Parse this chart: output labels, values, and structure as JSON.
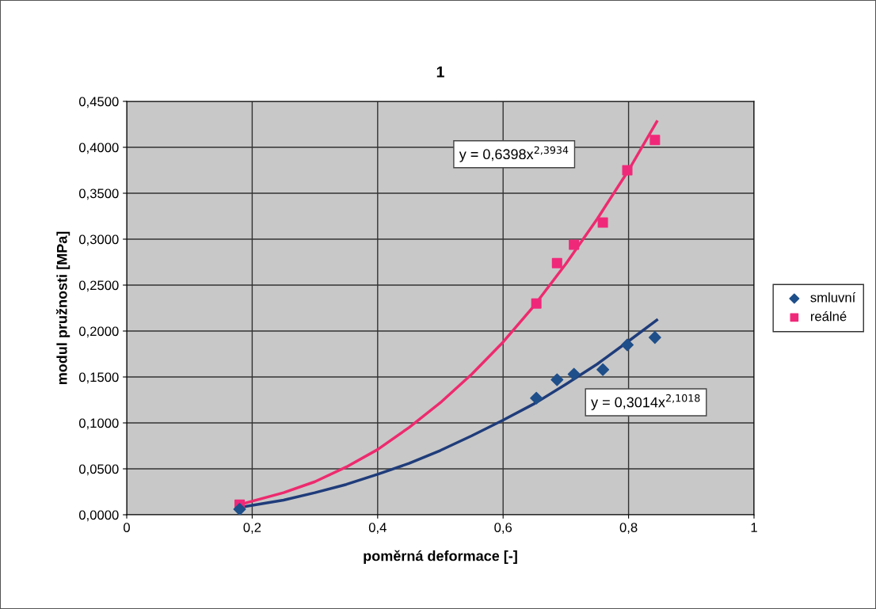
{
  "chart_data": {
    "type": "scatter",
    "title": "1",
    "xlabel": "poměrná deformace [-]",
    "ylabel": "modul pružnosti [MPa]",
    "xlim": [
      0,
      1
    ],
    "ylim": [
      0,
      0.45
    ],
    "xticks": [
      0,
      {
        "value": 0.2,
        "label": "0,2"
      },
      {
        "value": 0.4,
        "label": "0,4"
      },
      {
        "value": 0.6,
        "label": "0,6"
      },
      {
        "value": 0.8,
        "label": "0,8"
      },
      1
    ],
    "yticks": [
      {
        "value": 0,
        "label": "0,0000"
      },
      {
        "value": 0.05,
        "label": "0,0500"
      },
      {
        "value": 0.1,
        "label": "0,1000"
      },
      {
        "value": 0.15,
        "label": "0,1500"
      },
      {
        "value": 0.2,
        "label": "0,2000"
      },
      {
        "value": 0.25,
        "label": "0,2500"
      },
      {
        "value": 0.3,
        "label": "0,3000"
      },
      {
        "value": 0.35,
        "label": "0,3500"
      },
      {
        "value": 0.4,
        "label": "0,4000"
      },
      {
        "value": 0.45,
        "label": "0,4500"
      }
    ],
    "grid": true,
    "legend": "right",
    "series": [
      {
        "type": "line",
        "color": "#ee2a6e",
        "x": [
          0.18,
          0.25,
          0.3,
          0.35,
          0.4,
          0.45,
          0.5,
          0.55,
          0.6,
          0.65,
          0.7,
          0.75,
          0.8,
          0.845
        ],
        "values": [
          0.011,
          0.024,
          0.036,
          0.052,
          0.071,
          0.095,
          0.122,
          0.153,
          0.188,
          0.228,
          0.273,
          0.322,
          0.375,
          0.428
        ]
      },
      {
        "type": "line",
        "color": "#1f3c7a",
        "x": [
          0.18,
          0.25,
          0.3,
          0.35,
          0.4,
          0.45,
          0.5,
          0.55,
          0.6,
          0.65,
          0.7,
          0.75,
          0.8,
          0.845
        ],
        "values": [
          0.008,
          0.016,
          0.024,
          0.033,
          0.044,
          0.056,
          0.07,
          0.086,
          0.103,
          0.121,
          0.142,
          0.164,
          0.189,
          0.212
        ]
      },
      {
        "name": "smluvní",
        "marker": "diamond",
        "color": "#1f4f8a",
        "x": [
          0.18,
          0.653,
          0.686,
          0.713,
          0.759,
          0.798,
          0.842
        ],
        "values": [
          0.006,
          0.127,
          0.147,
          0.153,
          0.158,
          0.185,
          0.193
        ]
      },
      {
        "name": "reálné",
        "marker": "square",
        "color": "#f0287a",
        "x": [
          0.18,
          0.653,
          0.686,
          0.713,
          0.759,
          0.798,
          0.842
        ],
        "values": [
          0.011,
          0.23,
          0.274,
          0.294,
          0.318,
          0.375,
          0.408
        ]
      }
    ],
    "annotations": [
      "y = 0,6398x$^{2,3934}$",
      "y = 0,3014x$^{2,1018}$"
    ]
  }
}
